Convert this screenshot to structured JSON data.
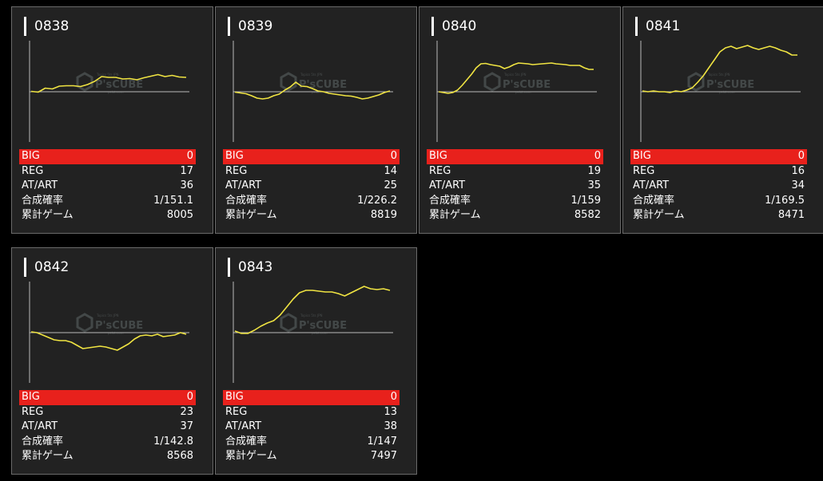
{
  "labels": {
    "big": "BIG",
    "reg": "REG",
    "at_art": "AT/ART",
    "prob": "合成確率",
    "games": "累計ゲーム"
  },
  "watermark": {
    "brand": "P'sCUBE",
    "tagline_top": "Topics 5ts JPN",
    "tagline_bottom": "pslot.com"
  },
  "colors": {
    "accent": "#e8211c",
    "graph_line": "#f0e442",
    "card_bg": "#222222"
  },
  "machines": [
    {
      "id": "0838",
      "big": "0",
      "reg": "17",
      "at_art": "36",
      "prob": "1/151.1",
      "games": "8005",
      "graph": [
        0.5,
        -0.5,
        4.5,
        3.5,
        7,
        7.5,
        7.5,
        6.5,
        9,
        13,
        19,
        18,
        18,
        16,
        16.5,
        15,
        17.5,
        19.5,
        21.5,
        19,
        20.5,
        18.5,
        18
      ]
    },
    {
      "id": "0839",
      "big": "0",
      "reg": "14",
      "at_art": "25",
      "prob": "1/226.2",
      "games": "8819",
      "graph": [
        -0.5,
        -1.5,
        -2.5,
        -5,
        -8,
        -9,
        -8,
        -5,
        -3,
        2,
        6,
        12,
        7,
        6.5,
        4,
        1,
        0,
        -2,
        -3,
        -4,
        -5,
        -5.5,
        -7,
        -9,
        -8,
        -6,
        -4,
        -1,
        1
      ]
    },
    {
      "id": "0840",
      "big": "0",
      "reg": "19",
      "at_art": "35",
      "prob": "1/159",
      "games": "8582",
      "graph": [
        0,
        -1,
        -2,
        -1,
        2,
        8,
        15,
        22,
        30,
        35,
        35.5,
        34,
        33,
        32,
        29,
        31,
        34,
        36,
        35.5,
        35,
        34,
        34.5,
        35,
        35.5,
        36,
        35,
        34.5,
        34,
        33,
        33,
        33,
        30,
        28,
        28
      ]
    },
    {
      "id": "0841",
      "big": "0",
      "reg": "16",
      "at_art": "34",
      "prob": "1/169.5",
      "games": "8471",
      "graph": [
        1,
        0,
        1,
        0,
        0,
        -1,
        1,
        0,
        2,
        5,
        12,
        20,
        30,
        40,
        50,
        55,
        57,
        54,
        56,
        58,
        55,
        53,
        55,
        57,
        55,
        52,
        50,
        46,
        46
      ]
    },
    {
      "id": "0842",
      "big": "0",
      "reg": "23",
      "at_art": "37",
      "prob": "1/142.8",
      "games": "8568",
      "graph": [
        1,
        0,
        -3,
        -6,
        -9,
        -10,
        -10,
        -12,
        -16,
        -20,
        -19,
        -18,
        -17,
        -18,
        -20,
        -22,
        -18,
        -14,
        -8,
        -4,
        -3,
        -4,
        -2,
        -5,
        -4,
        -3,
        0,
        -2
      ]
    },
    {
      "id": "0843",
      "big": "0",
      "reg": "13",
      "at_art": "38",
      "prob": "1/147",
      "games": "7497",
      "graph": [
        2,
        -1,
        -1,
        3,
        8,
        12,
        15,
        22,
        32,
        42,
        50,
        53,
        53,
        52,
        51,
        51,
        49,
        46,
        50,
        54,
        58,
        55,
        54,
        55,
        53
      ]
    }
  ]
}
